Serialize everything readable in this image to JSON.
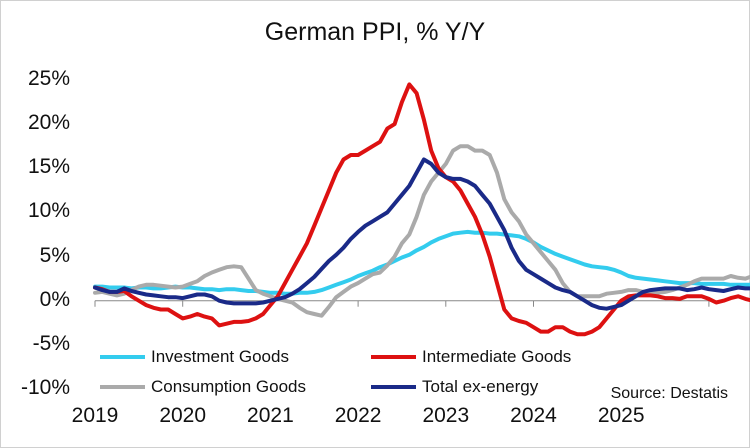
{
  "chart_data": {
    "type": "line",
    "title": "German PPI, % Y/Y",
    "source": "Source: Destatis",
    "xlabel": "",
    "ylabel": "",
    "ylim": [
      -10,
      25
    ],
    "yticks": [
      {
        "value": 25,
        "label": "25%"
      },
      {
        "value": 20,
        "label": "20%"
      },
      {
        "value": 15,
        "label": "15%"
      },
      {
        "value": 10,
        "label": "10%"
      },
      {
        "value": 5,
        "label": "5%"
      },
      {
        "value": 0,
        "label": "0%"
      },
      {
        "value": -5,
        "label": "-5%"
      },
      {
        "value": -10,
        "label": "-10%"
      }
    ],
    "xticks": [
      "2019",
      "2020",
      "2021",
      "2022",
      "2023",
      "2024",
      "2025"
    ],
    "x_start": "2019-01",
    "x_unit": "month",
    "legend_placement": "bottom",
    "grid": false,
    "series": [
      {
        "name": "Investment Goods",
        "color": "#33ccee",
        "values": [
          1.6,
          1.6,
          1.5,
          1.5,
          1.5,
          1.4,
          1.5,
          1.5,
          1.4,
          1.4,
          1.5,
          1.6,
          1.5,
          1.5,
          1.4,
          1.3,
          1.3,
          1.2,
          1.3,
          1.3,
          1.2,
          1.1,
          1.1,
          1.0,
          0.9,
          0.9,
          0.8,
          0.8,
          0.9,
          0.9,
          1.0,
          1.2,
          1.5,
          1.8,
          2.1,
          2.4,
          2.8,
          3.1,
          3.4,
          3.8,
          4.1,
          4.5,
          4.9,
          5.2,
          5.7,
          6.1,
          6.6,
          7.0,
          7.3,
          7.6,
          7.7,
          7.8,
          7.7,
          7.7,
          7.6,
          7.6,
          7.5,
          7.4,
          7.3,
          7.0,
          6.6,
          6.1,
          5.7,
          5.3,
          5.0,
          4.7,
          4.4,
          4.1,
          3.9,
          3.8,
          3.7,
          3.5,
          3.2,
          2.8,
          2.6,
          2.5,
          2.4,
          2.3,
          2.2,
          2.1,
          2.0,
          2.0,
          2.0,
          1.9,
          1.9,
          1.9,
          1.9,
          1.8,
          1.8,
          1.8,
          1.8,
          1.8,
          1.8,
          1.8,
          1.8,
          1.8,
          1.8,
          1.7,
          1.7,
          1.6,
          1.6,
          1.6,
          1.6
        ]
      },
      {
        "name": "Intermediate Goods",
        "color": "#dd1111",
        "values": [
          1.5,
          1.3,
          1.0,
          1.0,
          1.1,
          0.5,
          0.0,
          -0.5,
          -0.8,
          -1.0,
          -1.0,
          -1.5,
          -2.0,
          -1.8,
          -1.5,
          -1.8,
          -2.0,
          -2.8,
          -2.6,
          -2.4,
          -2.4,
          -2.3,
          -2.0,
          -1.5,
          -0.5,
          0.5,
          2.0,
          3.5,
          5.0,
          6.5,
          8.5,
          10.5,
          12.5,
          14.5,
          16.0,
          16.5,
          16.5,
          17.0,
          17.5,
          18.0,
          19.5,
          20.0,
          22.5,
          24.5,
          23.5,
          20.5,
          17.0,
          15.0,
          14.0,
          13.5,
          12.5,
          11.0,
          9.5,
          7.5,
          5.0,
          2.0,
          -1.0,
          -2.0,
          -2.3,
          -2.5,
          -3.0,
          -3.5,
          -3.5,
          -3.0,
          -3.0,
          -3.5,
          -3.8,
          -3.8,
          -3.5,
          -3.0,
          -2.0,
          -1.0,
          0.0,
          0.5,
          0.6,
          0.6,
          0.6,
          0.5,
          0.3,
          0.3,
          0.2,
          0.5,
          0.5,
          0.5,
          0.2,
          -0.2,
          0.0,
          0.3,
          0.5,
          0.2,
          0.0,
          -0.5,
          -0.8,
          -1.0,
          -1.0,
          -0.8,
          -0.5,
          -0.2,
          0.0,
          -0.3,
          -0.1,
          0.0,
          0.0
        ]
      },
      {
        "name": "Consumption Goods",
        "color": "#aaaaaa",
        "values": [
          0.9,
          1.0,
          0.8,
          0.6,
          0.8,
          1.2,
          1.6,
          1.8,
          1.8,
          1.7,
          1.6,
          1.5,
          1.6,
          1.9,
          2.2,
          2.8,
          3.2,
          3.5,
          3.8,
          3.9,
          3.8,
          2.5,
          1.2,
          0.8,
          0.5,
          0.2,
          0.0,
          -0.2,
          -0.8,
          -1.3,
          -1.5,
          -1.7,
          -0.7,
          0.4,
          1.0,
          1.6,
          2.0,
          2.5,
          3.0,
          3.2,
          4.0,
          5.0,
          6.5,
          7.5,
          9.5,
          12.0,
          13.5,
          14.5,
          15.5,
          17.0,
          17.5,
          17.5,
          17.0,
          17.0,
          16.5,
          14.5,
          11.5,
          10.0,
          9.0,
          7.5,
          6.5,
          5.5,
          4.5,
          3.5,
          2.0,
          1.0,
          0.5,
          0.5,
          0.5,
          0.5,
          0.8,
          0.9,
          1.0,
          1.2,
          1.2,
          1.0,
          1.0,
          0.9,
          1.0,
          1.2,
          1.5,
          1.8,
          2.2,
          2.5,
          2.5,
          2.5,
          2.5,
          2.8,
          2.6,
          2.5,
          2.8,
          3.0,
          3.2,
          3.4,
          3.3,
          3.3,
          3.2,
          3.2,
          3.0,
          2.5,
          2.0,
          1.8,
          1.8
        ]
      },
      {
        "name": "Total ex-energy",
        "color": "#1a2a88",
        "values": [
          1.5,
          1.2,
          1.0,
          1.0,
          1.4,
          1.1,
          0.9,
          0.7,
          0.6,
          0.5,
          0.4,
          0.4,
          0.3,
          0.5,
          0.7,
          0.7,
          0.5,
          0.0,
          -0.2,
          -0.3,
          -0.3,
          -0.3,
          -0.3,
          -0.2,
          0.0,
          0.2,
          0.4,
          0.8,
          1.3,
          2.0,
          2.7,
          3.6,
          4.5,
          5.2,
          6.0,
          7.0,
          7.8,
          8.5,
          9.0,
          9.5,
          10.0,
          11.0,
          12.0,
          13.0,
          14.5,
          16.0,
          15.5,
          14.5,
          14.0,
          13.8,
          13.8,
          13.5,
          13.0,
          12.0,
          11.0,
          9.5,
          8.0,
          6.0,
          4.5,
          3.5,
          3.0,
          2.5,
          2.0,
          1.5,
          1.2,
          1.0,
          0.5,
          0.0,
          -0.5,
          -0.8,
          -0.9,
          -0.7,
          -0.5,
          0.0,
          0.5,
          1.0,
          1.2,
          1.3,
          1.4,
          1.4,
          1.4,
          1.2,
          1.3,
          1.5,
          1.3,
          1.2,
          1.1,
          1.3,
          1.5,
          1.4,
          1.4,
          1.5,
          1.3,
          1.2,
          1.2,
          1.1,
          1.1,
          1.0,
          0.9,
          0.8,
          0.8,
          0.8,
          0.8
        ]
      }
    ]
  }
}
